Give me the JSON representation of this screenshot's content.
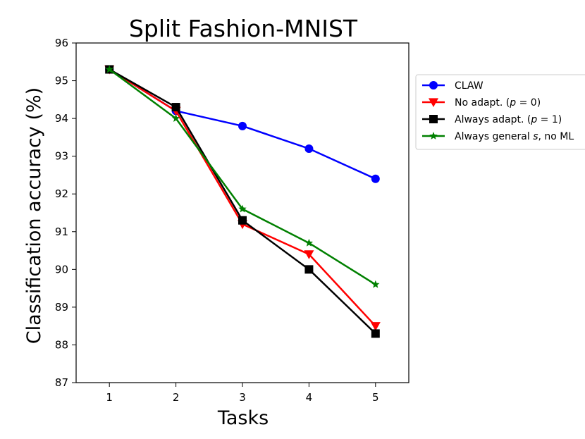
{
  "chart_data": {
    "type": "line",
    "title": "Split Fashion-MNIST",
    "xlabel": "Tasks",
    "ylabel": "Classification accuracy (%)",
    "x": [
      1,
      2,
      3,
      4,
      5
    ],
    "xticks": [
      "1",
      "2",
      "3",
      "4",
      "5"
    ],
    "yticks": [
      "87",
      "88",
      "89",
      "90",
      "91",
      "92",
      "93",
      "94",
      "95",
      "96"
    ],
    "xlim": [
      0.5,
      5.5
    ],
    "ylim": [
      87,
      96
    ],
    "grid": false,
    "legend_position": "outside right, top",
    "series": [
      {
        "name": "CLAW",
        "legend_text": [
          "CLAW"
        ],
        "color": "#0000ff",
        "marker": "circle",
        "values": [
          95.3,
          94.2,
          93.8,
          93.2,
          92.4
        ]
      },
      {
        "name": "No adapt. (p = 0)",
        "legend_text": [
          "No adapt. (",
          "p",
          " = 0)"
        ],
        "color": "#ff0000",
        "marker": "triangle-down",
        "values": [
          95.3,
          94.2,
          91.2,
          90.4,
          88.5
        ]
      },
      {
        "name": "Always adapt. (p = 1)",
        "legend_text": [
          "Always adapt. (",
          "p",
          " = 1)"
        ],
        "color": "#000000",
        "marker": "square",
        "values": [
          95.3,
          94.3,
          91.3,
          90.0,
          88.3
        ]
      },
      {
        "name": "Always general s, no ML",
        "legend_text": [
          "Always general ",
          "s",
          ", no ML"
        ],
        "color": "#008000",
        "marker": "star",
        "values": [
          95.3,
          94.0,
          91.6,
          90.7,
          89.6
        ]
      }
    ]
  }
}
